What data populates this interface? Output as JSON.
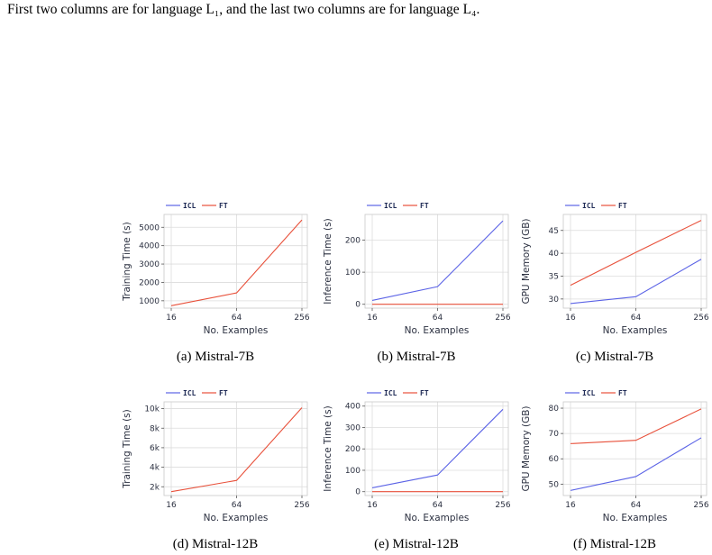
{
  "intro_text": "First two columns are for language L₁, and the last two columns are for language L₄.",
  "colors": {
    "icl": "#5b63e6",
    "ft": "#e8503a"
  },
  "legend": {
    "icl": "ICL",
    "ft": "FT"
  },
  "chart_data": [
    {
      "id": "a",
      "type": "line",
      "caption": "(a) Mistral-7B",
      "xlabel": "No. Examples",
      "ylabel": "Training Time (s)",
      "x_ticks": [
        "16",
        "64",
        "256"
      ],
      "y_ticks": [
        "1000",
        "2000",
        "3000",
        "4000",
        "5000"
      ],
      "y_tick_values": [
        1000,
        2000,
        3000,
        4000,
        5000
      ],
      "ylim": [
        600,
        5700
      ],
      "series": [
        {
          "name": "FT",
          "values": [
            730,
            1430,
            5400
          ]
        }
      ]
    },
    {
      "id": "b",
      "type": "line",
      "caption": "(b) Mistral-7B",
      "xlabel": "No. Examples",
      "ylabel": "Inference Time (s)",
      "x_ticks": [
        "16",
        "64",
        "256"
      ],
      "y_ticks": [
        "0",
        "100",
        "200"
      ],
      "y_tick_values": [
        0,
        100,
        200
      ],
      "ylim": [
        -12,
        280
      ],
      "series": [
        {
          "name": "ICL",
          "values": [
            12,
            55,
            260
          ]
        },
        {
          "name": "FT",
          "values": [
            0,
            0,
            0
          ]
        }
      ]
    },
    {
      "id": "c",
      "type": "line",
      "caption": "(c) Mistral-7B",
      "xlabel": "No. Examples",
      "ylabel": "GPU Memory (GB)",
      "x_ticks": [
        "16",
        "64",
        "256"
      ],
      "y_ticks": [
        "30",
        "35",
        "40",
        "45"
      ],
      "y_tick_values": [
        30,
        35,
        40,
        45
      ],
      "ylim": [
        28,
        48.5
      ],
      "series": [
        {
          "name": "ICL",
          "values": [
            29,
            30.5,
            38.7
          ]
        },
        {
          "name": "FT",
          "values": [
            33,
            40.2,
            47.2
          ]
        }
      ]
    },
    {
      "id": "d",
      "type": "line",
      "caption": "(d) Mistral-12B",
      "xlabel": "No. Examples",
      "ylabel": "Training Time (s)",
      "x_ticks": [
        "16",
        "64",
        "256"
      ],
      "y_ticks": [
        "2k",
        "4k",
        "6k",
        "8k",
        "10k"
      ],
      "y_tick_values": [
        2000,
        4000,
        6000,
        8000,
        10000
      ],
      "ylim": [
        1100,
        10700
      ],
      "series": [
        {
          "name": "FT",
          "values": [
            1500,
            2650,
            10100
          ]
        }
      ]
    },
    {
      "id": "e",
      "type": "line",
      "caption": "(e) Mistral-12B",
      "xlabel": "No. Examples",
      "ylabel": "Inference Time (s)",
      "x_ticks": [
        "16",
        "64",
        "256"
      ],
      "y_ticks": [
        "0",
        "100",
        "200",
        "300",
        "400"
      ],
      "y_tick_values": [
        0,
        100,
        200,
        300,
        400
      ],
      "ylim": [
        -18,
        420
      ],
      "series": [
        {
          "name": "ICL",
          "values": [
            18,
            78,
            385
          ]
        },
        {
          "name": "FT",
          "values": [
            0,
            0,
            0
          ]
        }
      ]
    },
    {
      "id": "f",
      "type": "line",
      "caption": "(f) Mistral-12B",
      "xlabel": "No. Examples",
      "ylabel": "GPU Memory (GB)",
      "x_ticks": [
        "16",
        "64",
        "256"
      ],
      "y_ticks": [
        "50",
        "60",
        "70",
        "80"
      ],
      "y_tick_values": [
        50,
        60,
        70,
        80
      ],
      "ylim": [
        45.5,
        82.5
      ],
      "series": [
        {
          "name": "ICL",
          "values": [
            47.5,
            53,
            68.3
          ]
        },
        {
          "name": "FT",
          "values": [
            66,
            67.3,
            79.7
          ]
        }
      ]
    }
  ]
}
